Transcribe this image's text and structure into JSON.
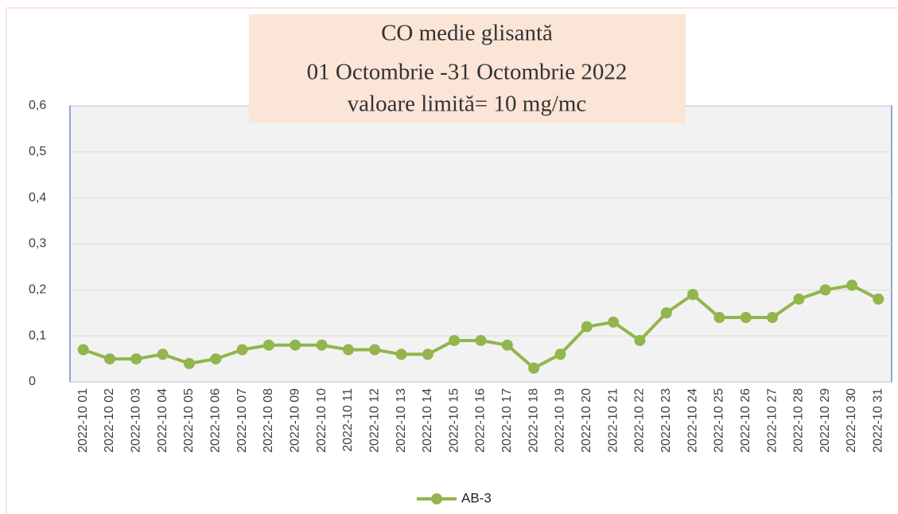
{
  "chart_data": {
    "type": "line",
    "title": [
      "CO medie glisantă",
      "01 Octombrie  -31 Octombrie  2022",
      "valoare limită= 10 mg/mc"
    ],
    "categories": [
      "2022-10 01",
      "2022-10 02",
      "2022-10 03",
      "2022-10 04",
      "2022-10 05",
      "2022-10 06",
      "2022-10 07",
      "2022-10 08",
      "2022-10 09",
      "2022-10 10",
      "2022-10 11",
      "2022-10 12",
      "2022-10 13",
      "2022-10 14",
      "2022-10 15",
      "2022-10 16",
      "2022-10 17",
      "2022-10 18",
      "2022-10 19",
      "2022-10 20",
      "2022-10 21",
      "2022-10 22",
      "2022-10 23",
      "2022-10 24",
      "2022-10 25",
      "2022-10 26",
      "2022-10 27",
      "2022-10 28",
      "2022-10 29",
      "2022-10 30",
      "2022-10 31"
    ],
    "series": [
      {
        "name": "AB-3",
        "color": "#92b54c",
        "values": [
          0.07,
          0.05,
          0.05,
          0.06,
          0.04,
          0.05,
          0.07,
          0.08,
          0.08,
          0.08,
          0.07,
          0.07,
          0.06,
          0.06,
          0.09,
          0.09,
          0.08,
          0.03,
          0.06,
          0.12,
          0.13,
          0.09,
          0.15,
          0.19,
          0.14,
          0.14,
          0.14,
          0.18,
          0.2,
          0.21,
          0.18
        ]
      }
    ],
    "ylim": [
      0,
      0.6
    ],
    "yticks": [
      0,
      {
        "value": 0.1,
        "label": "0,1"
      },
      {
        "value": 0.2,
        "label": "0,2"
      },
      {
        "value": 0.3,
        "label": "0,3"
      },
      {
        "value": 0.4,
        "label": "0,4"
      },
      {
        "value": 0.5,
        "label": "0,5"
      },
      {
        "value": 0.6,
        "label": "0,6"
      }
    ],
    "grid": true,
    "legend": "bottom"
  }
}
